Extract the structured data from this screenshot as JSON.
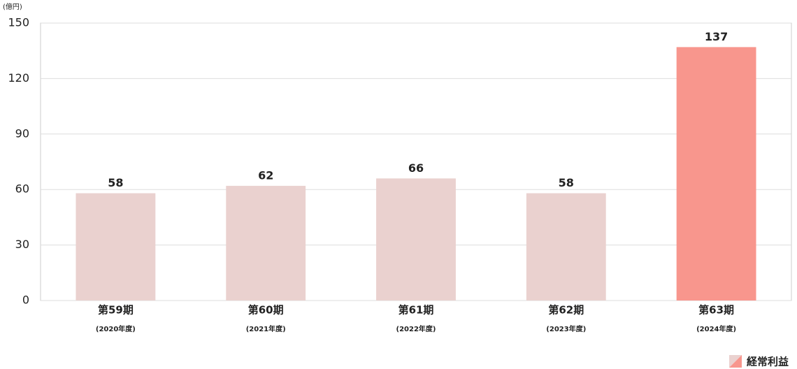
{
  "chart_data": {
    "type": "bar",
    "unit_label": "(億円)",
    "categories": [
      "第59期",
      "第60期",
      "第61期",
      "第62期",
      "第63期"
    ],
    "fiscal_years": [
      "(2020年度)",
      "(2021年度)",
      "(2022年度)",
      "(2023年度)",
      "(2024年度)"
    ],
    "series": [
      {
        "name": "経常利益",
        "values": [
          58,
          62,
          66,
          58,
          137
        ],
        "colors": [
          "#ead1cf",
          "#ead1cf",
          "#ead1cf",
          "#ead1cf",
          "#f8968d"
        ]
      }
    ],
    "ylim": [
      0,
      150
    ],
    "yticks": [
      0,
      30,
      60,
      90,
      120,
      150
    ],
    "grid": true,
    "legend": "bottom-right"
  }
}
